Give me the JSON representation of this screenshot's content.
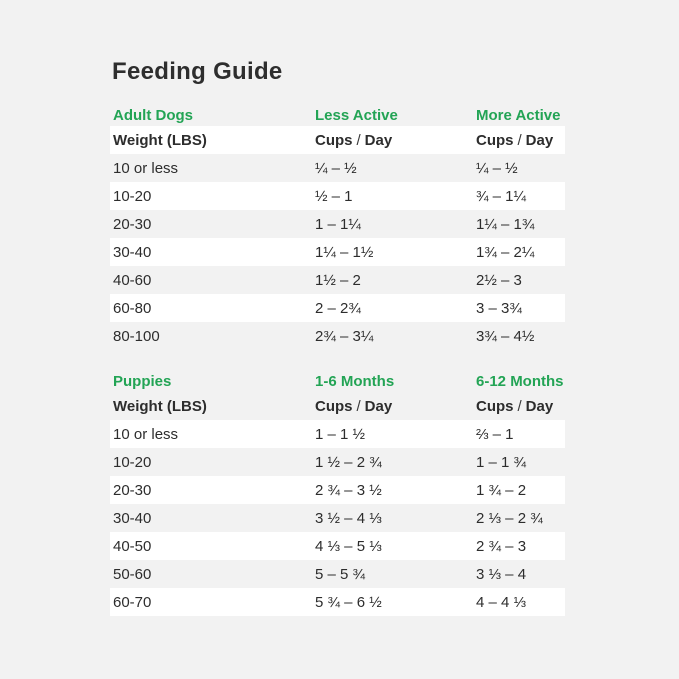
{
  "title": "Feeding Guide",
  "colors": {
    "accent_green": "#23a455",
    "text": "#2d2d2d",
    "background": "#f2f2f2",
    "row_highlight": "#ffffff"
  },
  "tables": [
    {
      "section": {
        "name": "Adult Dogs",
        "col2": "Less Active",
        "col3": "More Active"
      },
      "columns": {
        "weight_label": "Weight (LBS)",
        "cups": "Cups",
        "slash": "/",
        "day": "Day"
      },
      "rows": [
        {
          "weight": "10 or less",
          "col2": "¼ – ½",
          "col3": "¼ – ½"
        },
        {
          "weight": "10-20",
          "col2": "½ – 1",
          "col3": "¾ – 1¼"
        },
        {
          "weight": "20-30",
          "col2": "1 – 1¼",
          "col3": "1¼ – 1¾"
        },
        {
          "weight": "30-40",
          "col2": "1¼ – 1½",
          "col3": "1¾ – 2¼"
        },
        {
          "weight": "40-60",
          "col2": "1½ – 2",
          "col3": "2½ – 3"
        },
        {
          "weight": "60-80",
          "col2": "2 – 2¾",
          "col3": "3 – 3¾"
        },
        {
          "weight": "80-100",
          "col2": "2¾ – 3¼",
          "col3": "3¾ – 4½"
        }
      ]
    },
    {
      "section": {
        "name": "Puppies",
        "col2": "1-6 Months",
        "col3": "6-12 Months"
      },
      "columns": {
        "weight_label": "Weight (LBS)",
        "cups": "Cups",
        "slash": "/",
        "day": "Day"
      },
      "rows": [
        {
          "weight": "10 or less",
          "col2": "1 – 1 ½",
          "col3": "⅔ – 1"
        },
        {
          "weight": "10-20",
          "col2": "1 ½ – 2 ¾",
          "col3": "1 – 1 ¾"
        },
        {
          "weight": "20-30",
          "col2": "2 ¾ – 3 ½",
          "col3": "1 ¾ – 2"
        },
        {
          "weight": "30-40",
          "col2": "3 ½ – 4 ⅓",
          "col3": "2 ⅓ – 2 ¾"
        },
        {
          "weight": "40-50",
          "col2": "4 ⅓ – 5 ⅓",
          "col3": "2 ¾ – 3"
        },
        {
          "weight": "50-60",
          "col2": "5 – 5 ¾",
          "col3": "3 ⅓ – 4"
        },
        {
          "weight": "60-70",
          "col2": "5 ¾ – 6 ½",
          "col3": "4 – 4 ⅓"
        }
      ]
    }
  ]
}
